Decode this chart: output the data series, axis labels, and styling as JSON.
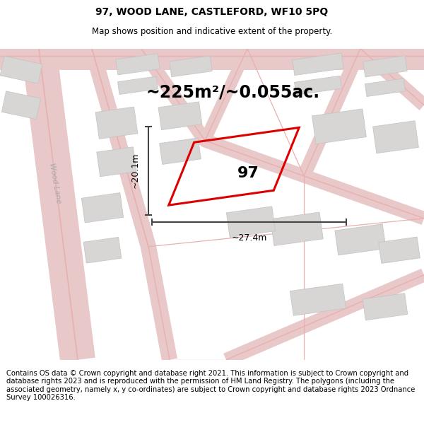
{
  "title": "97, WOOD LANE, CASTLEFORD, WF10 5PQ",
  "subtitle": "Map shows position and indicative extent of the property.",
  "area_text": "~225m²/~0.055ac.",
  "property_number": "97",
  "dim_width": "~27.4m",
  "dim_height": "~20.1m",
  "street_label": "Wood Lane",
  "footer_text": "Contains OS data © Crown copyright and database right 2021. This information is subject to Crown copyright and database rights 2023 and is reproduced with the permission of HM Land Registry. The polygons (including the associated geometry, namely x, y co-ordinates) are subject to Crown copyright and database rights 2023 Ordnance Survey 100026316.",
  "map_bg": "#f5f3f3",
  "road_line_color": "#e8b0b0",
  "road_fill_color": "#e8c8c8",
  "plot_edge_color": "#dd0000",
  "building_face_color": "#d8d5d5",
  "building_edge_color": "#c8c5c5",
  "dim_color": "#444444",
  "street_label_color": "#aaaaaa",
  "title_fontsize": 10,
  "subtitle_fontsize": 8.5,
  "area_fontsize": 17,
  "number_fontsize": 16,
  "dim_fontsize": 9,
  "footer_fontsize": 7.2
}
